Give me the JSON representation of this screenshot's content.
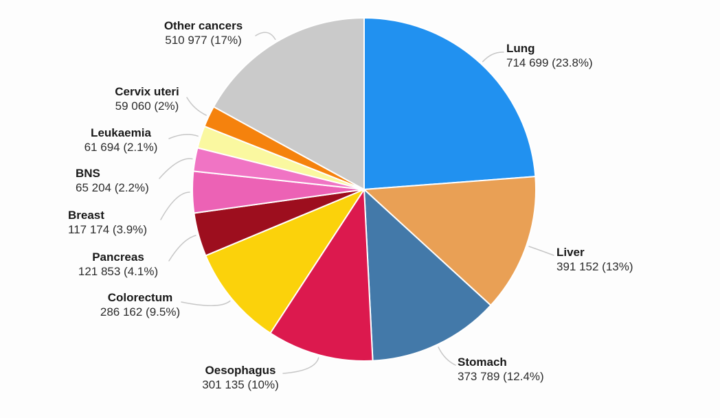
{
  "chart_data": {
    "type": "pie",
    "direction": "clockwise",
    "start_angle_deg": 0,
    "legend_position": "labels-around-pie",
    "slice_border_color": "#FFFFFF",
    "leader_line_color": "#C6C6C6",
    "background_color": "#FDFDFD",
    "slices": [
      {
        "label": "Lung",
        "value": 714699,
        "pct": 23.8,
        "display": "714 699 (23.8%)",
        "color": "#2191F0"
      },
      {
        "label": "Liver",
        "value": 391152,
        "pct": 13,
        "display": "391 152 (13%)",
        "color": "#E9A055"
      },
      {
        "label": "Stomach",
        "value": 373789,
        "pct": 12.4,
        "display": "373 789 (12.4%)",
        "color": "#4379A9"
      },
      {
        "label": "Oesophagus",
        "value": 301135,
        "pct": 10,
        "display": "301 135 (10%)",
        "color": "#DC194E"
      },
      {
        "label": "Colorectum",
        "value": 286162,
        "pct": 9.5,
        "display": "286 162 (9.5%)",
        "color": "#FBD20B"
      },
      {
        "label": "Pancreas",
        "value": 121853,
        "pct": 4.1,
        "display": "121 853 (4.1%)",
        "color": "#9D0E1E"
      },
      {
        "label": "Breast",
        "value": 117174,
        "pct": 3.9,
        "display": "117 174 (3.9%)",
        "color": "#EC62B5"
      },
      {
        "label": "BNS",
        "value": 65204,
        "pct": 2.2,
        "display": "65 204 (2.2%)",
        "color": "#F074C4"
      },
      {
        "label": "Leukaemia",
        "value": 61694,
        "pct": 2.1,
        "display": "61 694 (2.1%)",
        "color": "#FAF8A0"
      },
      {
        "label": "Cervix uteri",
        "value": 59060,
        "pct": 2,
        "display": "59 060 (2%)",
        "color": "#F5820D"
      },
      {
        "label": "Other cancers",
        "value": 510977,
        "pct": 17,
        "display": "510 977 (17%)",
        "color": "#CACACA"
      }
    ]
  }
}
